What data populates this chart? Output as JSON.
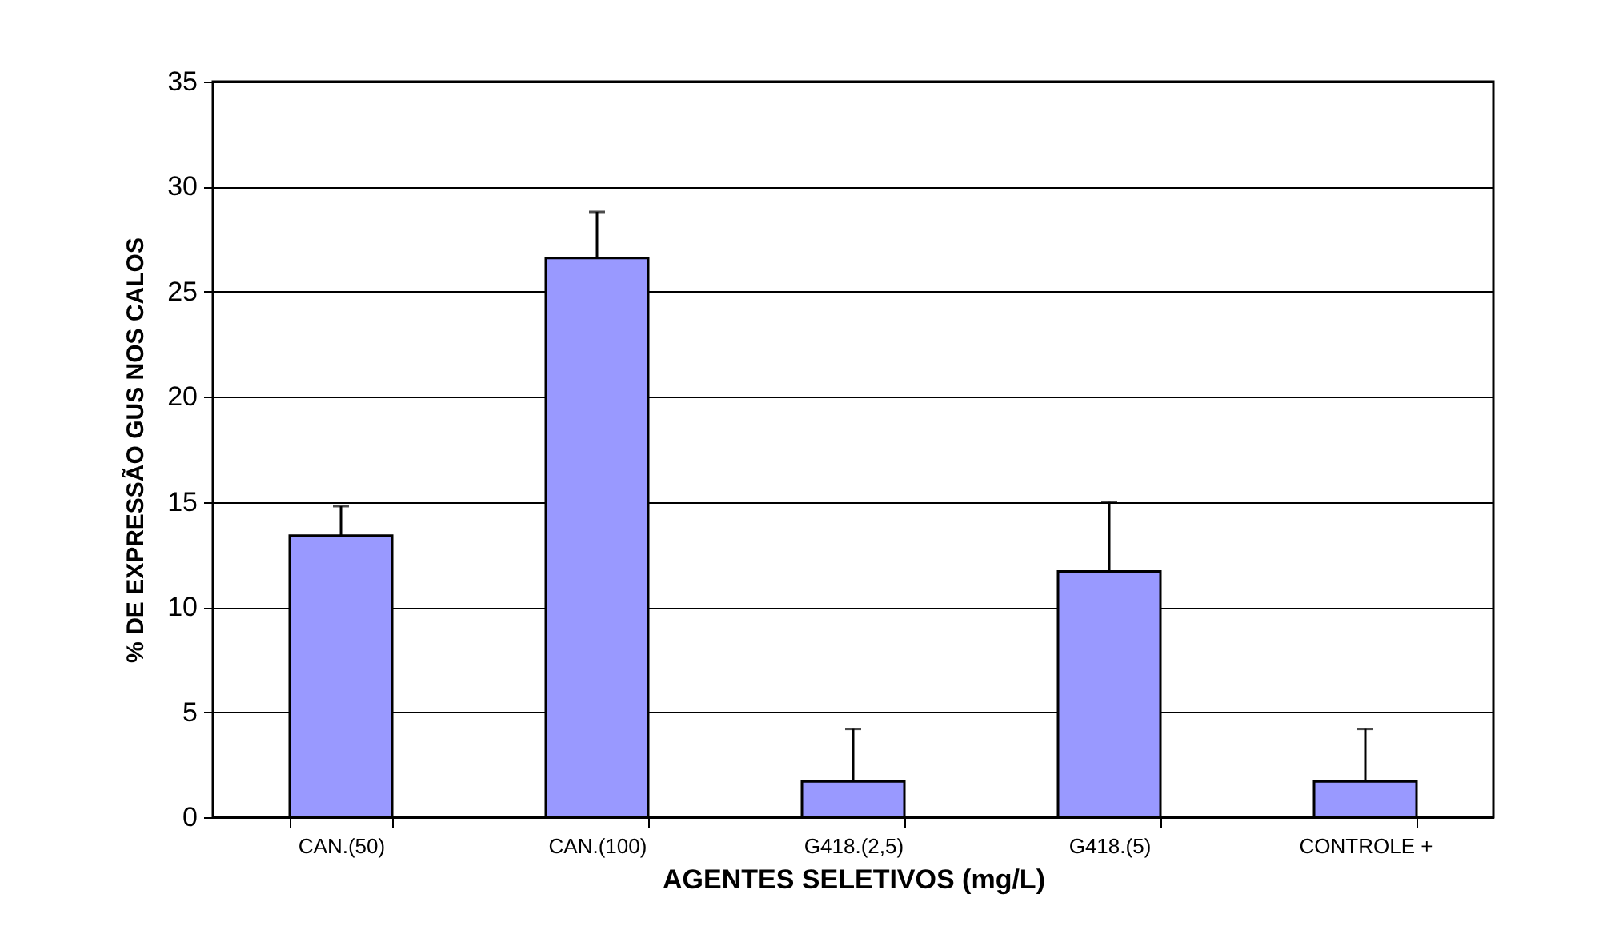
{
  "chart_data": {
    "type": "bar",
    "xlabel": "AGENTES SELETIVOS (mg/L)",
    "ylabel": "% DE EXPRESSÃO GUS NOS CALOS",
    "categories": [
      "CAN.(50)",
      "CAN.(100)",
      "G418.(2,5)",
      "G418.(5)",
      "CONTROLE +"
    ],
    "values": [
      13.4,
      26.6,
      1.7,
      11.7,
      1.7
    ],
    "errors": [
      [
        13.4,
        14.8
      ],
      [
        26.6,
        28.8
      ],
      [
        1.7,
        4.2
      ],
      [
        11.7,
        15.0
      ],
      [
        1.7,
        4.2
      ]
    ],
    "color": "#9999ff",
    "ylim": [
      0,
      35
    ],
    "yticks": [
      0,
      5,
      10,
      15,
      20,
      25,
      30,
      35
    ],
    "grid": "y"
  }
}
